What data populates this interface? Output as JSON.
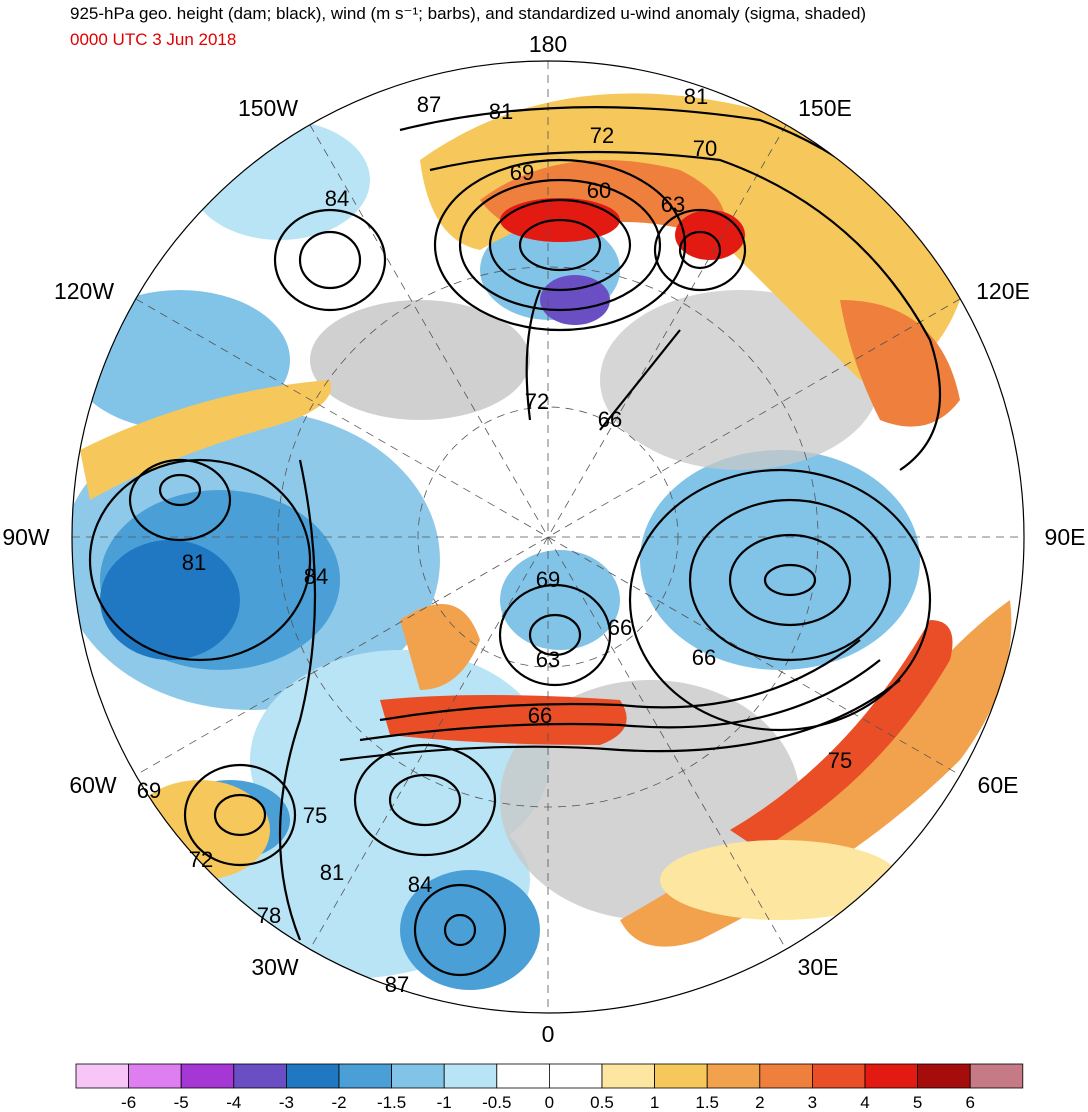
{
  "header": {
    "title": "925-hPa geo. height (dam; black), wind (m s⁻¹; barbs), and standardized u-wind anomaly (sigma, shaded)",
    "valid_time": "0000 UTC 3 Jun 2018"
  },
  "map": {
    "projection": "north polar stereographic",
    "longitude_labels": [
      {
        "text": "180",
        "lon": 180
      },
      {
        "text": "150E",
        "lon": 150
      },
      {
        "text": "120E",
        "lon": 120
      },
      {
        "text": "90E",
        "lon": 90
      },
      {
        "text": "60E",
        "lon": 60
      },
      {
        "text": "30E",
        "lon": 30
      },
      {
        "text": "0",
        "lon": 0
      },
      {
        "text": "30W",
        "lon": -30
      },
      {
        "text": "60W",
        "lon": -60
      },
      {
        "text": "90W",
        "lon": -90
      },
      {
        "text": "120W",
        "lon": -120
      },
      {
        "text": "150W",
        "lon": -150
      }
    ],
    "contour_labels": [
      "87",
      "81",
      "81",
      "72",
      "70",
      "69",
      "60",
      "63",
      "84",
      "72",
      "66",
      "81",
      "84",
      "69",
      "66",
      "63",
      "66",
      "66",
      "75",
      "69",
      "75",
      "72",
      "81",
      "84",
      "78",
      "87"
    ]
  },
  "colorbar": {
    "tick_labels": [
      "-6",
      "-5",
      "-4",
      "-3",
      "-2",
      "-1.5",
      "-1",
      "-0.5",
      "0",
      "0.5",
      "1",
      "1.5",
      "2",
      "3",
      "4",
      "5",
      "6"
    ],
    "colors": [
      "#f7c6f7",
      "#de7ef0",
      "#a537d4",
      "#6a4fc4",
      "#1f78c1",
      "#4a9fd6",
      "#82c3e8",
      "#b8e4f5",
      "#ffffff",
      "#ffffff",
      "#fde7a0",
      "#f6c85c",
      "#f2a24d",
      "#ef7f3c",
      "#ea4e26",
      "#e31a12",
      "#a50c0c",
      "#c57a86"
    ]
  }
}
